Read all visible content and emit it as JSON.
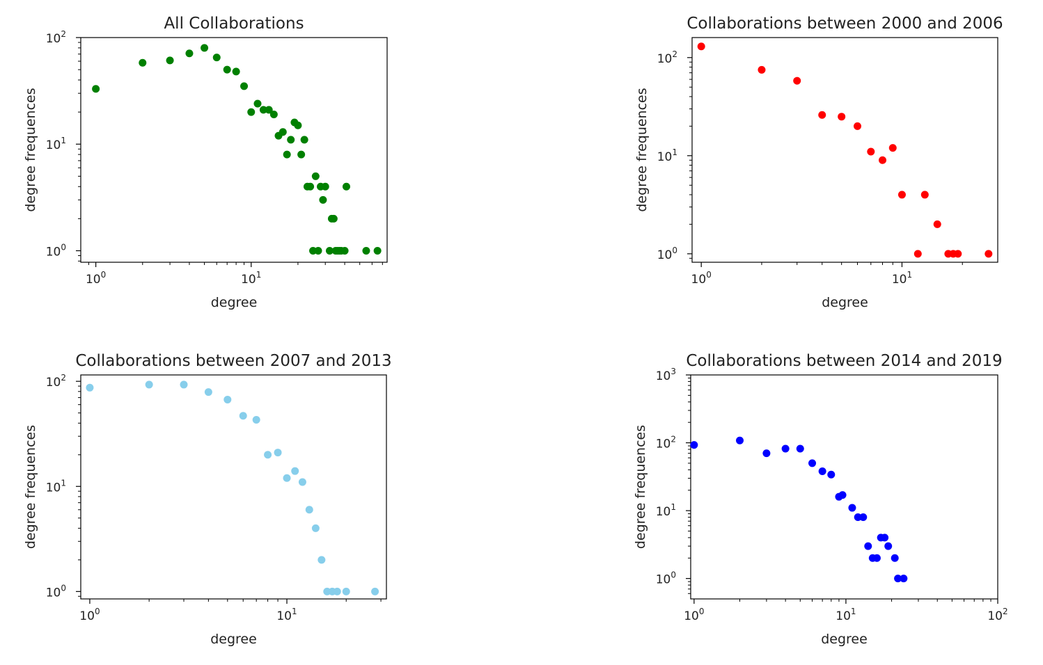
{
  "chart_data": [
    {
      "type": "scatter",
      "title": "All Collaborations",
      "xlabel": "degree",
      "ylabel": "degree frequences",
      "xscale": "log",
      "yscale": "log",
      "xlim": [
        0.8,
        75
      ],
      "ylim": [
        0.78,
        100
      ],
      "xticks": [
        {
          "base": "10",
          "exp": "0",
          "value": 1
        },
        {
          "base": "10",
          "exp": "1",
          "value": 10
        }
      ],
      "yticks": [
        {
          "base": "10",
          "exp": "0",
          "value": 1
        },
        {
          "base": "10",
          "exp": "1",
          "value": 10
        },
        {
          "base": "10",
          "exp": "2",
          "value": 100
        }
      ],
      "color": "#008000",
      "grid": false,
      "series": [
        {
          "x": [
            1,
            2,
            3,
            4,
            5,
            6,
            7,
            8,
            9,
            10,
            11,
            12,
            13,
            14,
            15,
            16,
            17,
            18,
            19,
            20,
            21,
            22,
            23,
            24,
            25,
            26,
            27,
            28,
            29,
            30,
            32,
            33,
            34,
            35,
            36,
            37,
            38,
            40,
            41,
            55,
            65
          ],
          "y": [
            33,
            58,
            61,
            71,
            80,
            65,
            50,
            48,
            35,
            20,
            24,
            21,
            21,
            19,
            12,
            13,
            8,
            11,
            16,
            15,
            8,
            11,
            4,
            4,
            1,
            5,
            1,
            4,
            3,
            4,
            1,
            2,
            2,
            1,
            1,
            1,
            1,
            1,
            4,
            1,
            1
          ]
        }
      ]
    },
    {
      "type": "scatter",
      "title": "Collaborations between 2000 and 2006",
      "xlabel": "degree",
      "ylabel": "degree frequences",
      "xscale": "log",
      "yscale": "log",
      "xlim": [
        0.9,
        30
      ],
      "ylim": [
        0.82,
        160
      ],
      "xticks": [
        {
          "base": "10",
          "exp": "0",
          "value": 1
        },
        {
          "base": "10",
          "exp": "1",
          "value": 10
        }
      ],
      "yticks": [
        {
          "base": "10",
          "exp": "0",
          "value": 1
        },
        {
          "base": "10",
          "exp": "1",
          "value": 10
        },
        {
          "base": "10",
          "exp": "2",
          "value": 100
        }
      ],
      "color": "#ff0000",
      "grid": false,
      "series": [
        {
          "x": [
            1,
            2,
            3,
            4,
            5,
            6,
            7,
            8,
            9,
            10,
            12,
            13,
            15,
            17,
            18,
            19,
            27
          ],
          "y": [
            130,
            75,
            58,
            26,
            25,
            20,
            11,
            9,
            12,
            4,
            1,
            4,
            2,
            1,
            1,
            1,
            1
          ]
        }
      ]
    },
    {
      "type": "scatter",
      "title": "Collaborations between 2007 and 2013",
      "xlabel": "degree",
      "ylabel": "degree frequences",
      "xscale": "log",
      "yscale": "log",
      "xlim": [
        0.9,
        32
      ],
      "ylim": [
        0.85,
        115
      ],
      "xticks": [
        {
          "base": "10",
          "exp": "0",
          "value": 1
        },
        {
          "base": "10",
          "exp": "1",
          "value": 10
        }
      ],
      "yticks": [
        {
          "base": "10",
          "exp": "0",
          "value": 1
        },
        {
          "base": "10",
          "exp": "1",
          "value": 10
        },
        {
          "base": "10",
          "exp": "2",
          "value": 100
        }
      ],
      "color": "#87ceeb",
      "grid": false,
      "series": [
        {
          "x": [
            1,
            2,
            3,
            4,
            5,
            6,
            7,
            8,
            9,
            10,
            11,
            12,
            13,
            14,
            15,
            16,
            17,
            18,
            20,
            28
          ],
          "y": [
            87,
            93,
            93,
            79,
            67,
            47,
            43,
            20,
            21,
            12,
            14,
            11,
            6,
            4,
            2,
            1,
            1,
            1,
            1,
            1
          ]
        }
      ]
    },
    {
      "type": "scatter",
      "title": "Collaborations between 2014 and 2019",
      "xlabel": "degree",
      "ylabel": "degree frequences",
      "xscale": "log",
      "yscale": "log",
      "xlim": [
        0.95,
        100
      ],
      "ylim": [
        0.5,
        1000
      ],
      "xticks": [
        {
          "base": "10",
          "exp": "0",
          "value": 1
        },
        {
          "base": "10",
          "exp": "1",
          "value": 10
        },
        {
          "base": "10",
          "exp": "2",
          "value": 100
        }
      ],
      "yticks": [
        {
          "base": "10",
          "exp": "0",
          "value": 1
        },
        {
          "base": "10",
          "exp": "1",
          "value": 10
        },
        {
          "base": "10",
          "exp": "2",
          "value": 100
        },
        {
          "base": "10",
          "exp": "3",
          "value": 1000
        }
      ],
      "color": "#0000ff",
      "grid": false,
      "series": [
        {
          "x": [
            1,
            2,
            3,
            4,
            5,
            6,
            7,
            8,
            9,
            9.5,
            11,
            12,
            13,
            14,
            15,
            16,
            17,
            18,
            19,
            21,
            22,
            24
          ],
          "y": [
            93,
            108,
            70,
            82,
            82,
            50,
            38,
            34,
            16,
            17,
            11,
            8,
            8,
            3,
            2,
            2,
            4,
            4,
            3,
            2,
            1,
            1
          ]
        }
      ]
    }
  ]
}
